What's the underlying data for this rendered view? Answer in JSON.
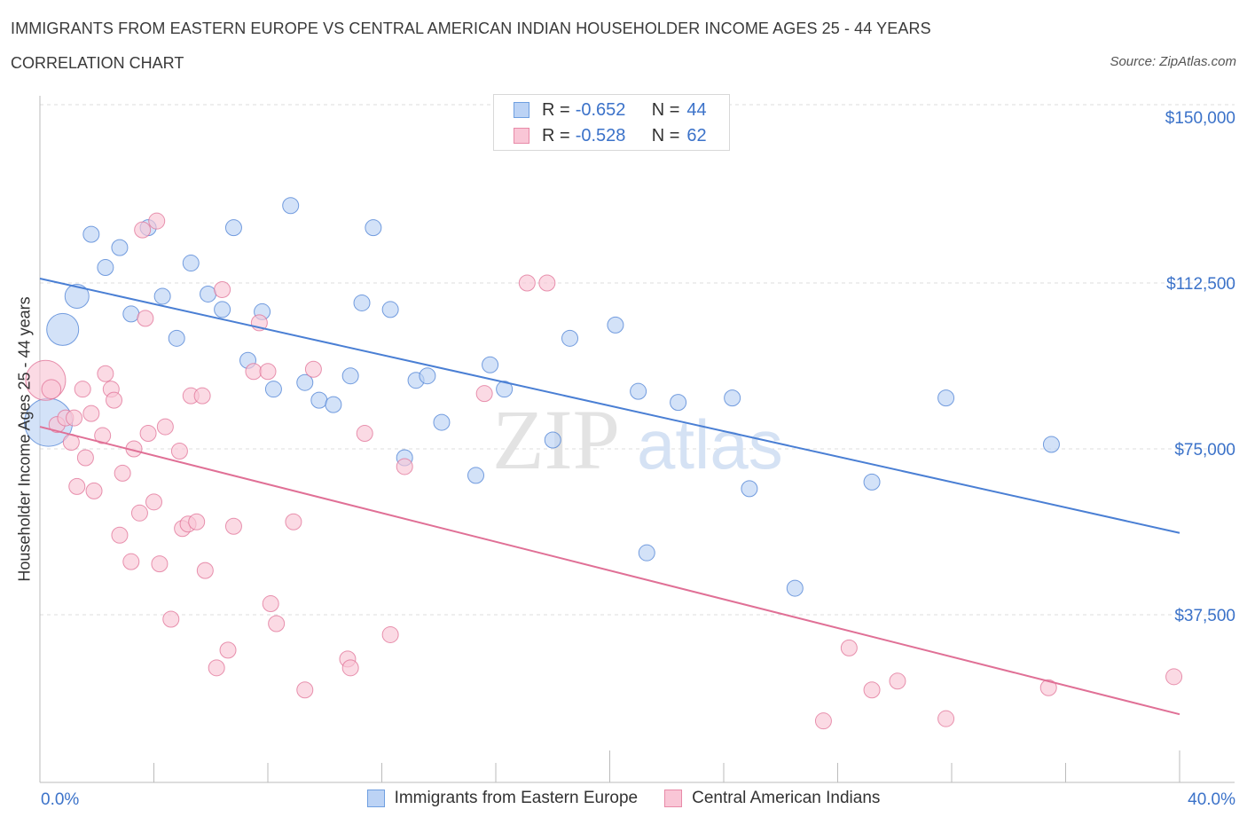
{
  "header": {
    "title": "IMMIGRANTS FROM EASTERN EUROPE VS CENTRAL AMERICAN INDIAN HOUSEHOLDER INCOME AGES 25 - 44 YEARS",
    "subtitle": "CORRELATION CHART",
    "source": "Source: ZipAtlas.com"
  },
  "watermark": {
    "zip": "ZIP",
    "atlas": "atlas"
  },
  "legend": {
    "rows": [
      {
        "r_label": "R = ",
        "r_value": "-0.652",
        "n_label": "N = ",
        "n_value": "44",
        "color": "#6f9fe0",
        "fill": "#bcd3f5"
      },
      {
        "r_label": "R = ",
        "r_value": "-0.528",
        "n_label": "N = ",
        "n_value": "62",
        "color": "#e88aa8",
        "fill": "#f9c6d6"
      }
    ]
  },
  "bottom_legend": {
    "items": [
      {
        "label": "Immigrants from Eastern Europe",
        "color": "#6f9fe0",
        "fill": "#bcd3f5"
      },
      {
        "label": "Central American Indians",
        "color": "#e88aa8",
        "fill": "#f9c6d6"
      }
    ]
  },
  "axes": {
    "x_min_label": "0.0%",
    "x_max_label": "40.0%",
    "ylabel": "Householder Income Ages 25 - 44 years",
    "y_tick_labels": [
      "$150,000",
      "$112,500",
      "$75,000",
      "$37,500"
    ],
    "y_tick_values": [
      150000,
      112500,
      75000,
      37500
    ]
  },
  "chart_data": {
    "type": "scatter",
    "title": "IMMIGRANTS FROM EASTERN EUROPE VS CENTRAL AMERICAN INDIAN HOUSEHOLDER INCOME AGES 25 - 44 YEARS",
    "xlabel": "",
    "ylabel": "Householder Income Ages 25 - 44 years",
    "xlim": [
      0,
      40
    ],
    "ylim": [
      0,
      150000
    ],
    "grid": true,
    "series": [
      {
        "name": "Immigrants from Eastern Europe",
        "color": "#4a7fd4",
        "fill": "#bcd3f5",
        "trend": {
          "x": [
            0,
            40
          ],
          "y": [
            113500,
            56000
          ]
        },
        "points": [
          [
            0.3,
            81000,
            3
          ],
          [
            0.8,
            102000,
            2
          ],
          [
            1.3,
            109500,
            1.5
          ],
          [
            1.8,
            123500,
            1
          ],
          [
            2.3,
            116000,
            1
          ],
          [
            2.8,
            120500,
            1
          ],
          [
            3.2,
            105500,
            1
          ],
          [
            3.8,
            125000,
            1
          ],
          [
            4.3,
            109500,
            1
          ],
          [
            4.8,
            100000,
            1
          ],
          [
            5.3,
            117000,
            1
          ],
          [
            5.9,
            110000,
            1
          ],
          [
            6.4,
            106500,
            1
          ],
          [
            6.8,
            125000,
            1
          ],
          [
            7.3,
            95000,
            1
          ],
          [
            7.8,
            106000,
            1
          ],
          [
            8.2,
            88500,
            1
          ],
          [
            8.8,
            130000,
            1
          ],
          [
            9.3,
            90000,
            1
          ],
          [
            9.8,
            86000,
            1
          ],
          [
            10.3,
            85000,
            1
          ],
          [
            10.9,
            91500,
            1
          ],
          [
            11.3,
            108000,
            1
          ],
          [
            11.7,
            125000,
            1
          ],
          [
            12.3,
            106500,
            1
          ],
          [
            12.8,
            73000,
            1
          ],
          [
            13.2,
            90500,
            1
          ],
          [
            13.6,
            91500,
            1
          ],
          [
            14.1,
            81000,
            1
          ],
          [
            15.3,
            69000,
            1
          ],
          [
            15.8,
            94000,
            1
          ],
          [
            16.3,
            88500,
            1
          ],
          [
            18.0,
            77000,
            1
          ],
          [
            18.6,
            100000,
            1
          ],
          [
            20.2,
            103000,
            1
          ],
          [
            21.0,
            88000,
            1
          ],
          [
            21.3,
            51500,
            1
          ],
          [
            22.4,
            85500,
            1
          ],
          [
            24.3,
            86500,
            1
          ],
          [
            24.9,
            66000,
            1
          ],
          [
            26.5,
            43500,
            1
          ],
          [
            29.2,
            67500,
            1
          ],
          [
            31.8,
            86500,
            1
          ],
          [
            35.5,
            76000,
            1
          ]
        ]
      },
      {
        "name": "Central American Indians",
        "color": "#e07096",
        "fill": "#f9c6d6",
        "trend": {
          "x": [
            0,
            40
          ],
          "y": [
            80000,
            15000
          ]
        },
        "points": [
          [
            0.2,
            90500,
            2.5
          ],
          [
            0.4,
            88500,
            1.2
          ],
          [
            0.6,
            80500,
            1
          ],
          [
            0.9,
            82000,
            1
          ],
          [
            1.1,
            76500,
            1
          ],
          [
            1.3,
            66500,
            1
          ],
          [
            1.5,
            88500,
            1
          ],
          [
            1.6,
            73000,
            1
          ],
          [
            1.8,
            83000,
            1
          ],
          [
            1.9,
            65500,
            1
          ],
          [
            2.2,
            78000,
            1
          ],
          [
            2.3,
            92000,
            1
          ],
          [
            2.5,
            88500,
            1
          ],
          [
            2.6,
            86000,
            1
          ],
          [
            2.8,
            55500,
            1
          ],
          [
            2.9,
            69500,
            1
          ],
          [
            3.2,
            49500,
            1
          ],
          [
            3.3,
            75000,
            1
          ],
          [
            3.5,
            60500,
            1
          ],
          [
            3.6,
            124500,
            1
          ],
          [
            3.7,
            104500,
            1
          ],
          [
            3.8,
            78500,
            1
          ],
          [
            4.0,
            63000,
            1
          ],
          [
            4.1,
            126500,
            1
          ],
          [
            4.2,
            49000,
            1
          ],
          [
            4.4,
            80000,
            1
          ],
          [
            4.6,
            36500,
            1
          ],
          [
            4.9,
            74500,
            1
          ],
          [
            5.0,
            57000,
            1
          ],
          [
            5.2,
            58000,
            1
          ],
          [
            5.3,
            87000,
            1
          ],
          [
            5.5,
            58500,
            1
          ],
          [
            5.7,
            87000,
            1
          ],
          [
            5.8,
            47500,
            1
          ],
          [
            6.2,
            25500,
            1
          ],
          [
            6.4,
            111000,
            1
          ],
          [
            6.6,
            29500,
            1
          ],
          [
            6.8,
            57500,
            1
          ],
          [
            7.5,
            92500,
            1
          ],
          [
            7.7,
            103500,
            1
          ],
          [
            8.0,
            92500,
            1
          ],
          [
            8.1,
            40000,
            1
          ],
          [
            8.3,
            35500,
            1
          ],
          [
            8.9,
            58500,
            1
          ],
          [
            9.3,
            20500,
            1
          ],
          [
            9.6,
            93000,
            1
          ],
          [
            10.8,
            27500,
            1
          ],
          [
            10.9,
            25500,
            1
          ],
          [
            11.4,
            78500,
            1
          ],
          [
            12.3,
            33000,
            1
          ],
          [
            12.8,
            71000,
            1
          ],
          [
            15.6,
            87500,
            1
          ],
          [
            17.1,
            112500,
            1
          ],
          [
            17.8,
            112500,
            1
          ],
          [
            27.5,
            13500,
            1
          ],
          [
            28.4,
            30000,
            1
          ],
          [
            29.2,
            20500,
            1
          ],
          [
            30.1,
            22500,
            1
          ],
          [
            31.8,
            14000,
            1
          ],
          [
            35.4,
            21000,
            1
          ],
          [
            39.8,
            23500,
            1
          ],
          [
            1.2,
            82000,
            1
          ]
        ]
      }
    ]
  }
}
